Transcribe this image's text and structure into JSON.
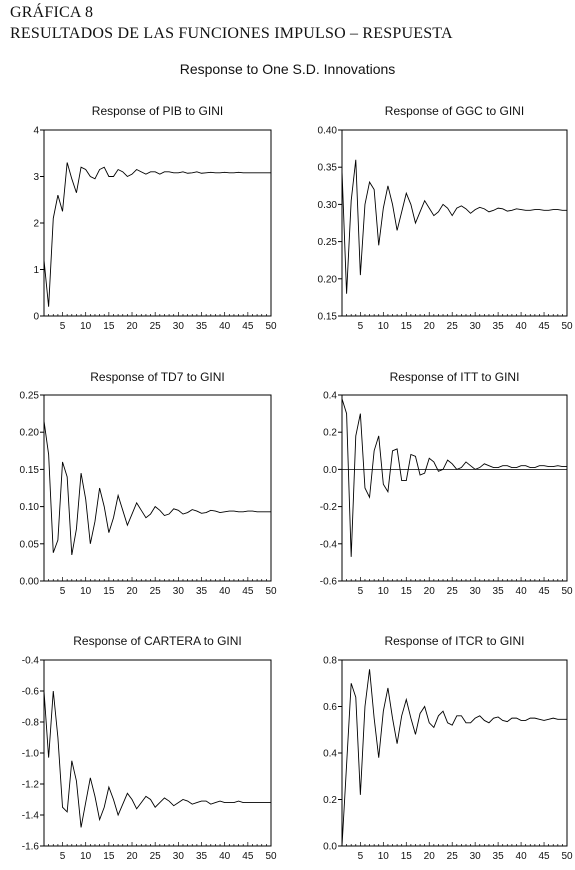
{
  "header": {
    "line1": "GRÁFICA 8",
    "line2": "RESULTADOS DE LAS FUNCIONES IMPULSO – RESPUESTA",
    "subtitle": "Response to One S.D. Innovations"
  },
  "chart_data": [
    {
      "type": "line",
      "title": "Response of PIB to GINI",
      "xlim": [
        1,
        50
      ],
      "ylim": [
        0,
        4
      ],
      "xticks": [
        5,
        10,
        15,
        20,
        25,
        30,
        35,
        40,
        45,
        50
      ],
      "yticks": [
        0,
        1,
        2,
        3,
        4
      ],
      "ytick_labels": [
        "0",
        "1",
        "2",
        "3",
        "4"
      ],
      "zero_line": false,
      "series": [
        {
          "values": [
            1.2,
            0.2,
            2.1,
            2.6,
            2.25,
            3.3,
            2.95,
            2.65,
            3.2,
            3.15,
            3.0,
            2.95,
            3.15,
            3.2,
            3.0,
            3.0,
            3.15,
            3.1,
            3.0,
            3.05,
            3.15,
            3.1,
            3.05,
            3.1,
            3.1,
            3.05,
            3.1,
            3.1,
            3.08,
            3.08,
            3.1,
            3.07,
            3.08,
            3.1,
            3.07,
            3.08,
            3.09,
            3.08,
            3.08,
            3.09,
            3.08,
            3.08,
            3.09,
            3.08,
            3.08,
            3.08,
            3.08,
            3.08,
            3.08,
            3.08
          ]
        }
      ]
    },
    {
      "type": "line",
      "title": "Response of GGC to GINI",
      "xlim": [
        1,
        50
      ],
      "ylim": [
        0.15,
        0.4
      ],
      "xticks": [
        5,
        10,
        15,
        20,
        25,
        30,
        35,
        40,
        45,
        50
      ],
      "yticks": [
        0.15,
        0.2,
        0.25,
        0.3,
        0.35,
        0.4
      ],
      "ytick_labels": [
        "0.15",
        "0.20",
        "0.25",
        "0.30",
        "0.35",
        "0.40"
      ],
      "zero_line": false,
      "series": [
        {
          "values": [
            0.345,
            0.18,
            0.305,
            0.36,
            0.205,
            0.3,
            0.33,
            0.32,
            0.245,
            0.295,
            0.325,
            0.3,
            0.265,
            0.29,
            0.315,
            0.3,
            0.275,
            0.29,
            0.305,
            0.295,
            0.285,
            0.29,
            0.3,
            0.295,
            0.285,
            0.295,
            0.298,
            0.294,
            0.288,
            0.293,
            0.296,
            0.294,
            0.29,
            0.292,
            0.295,
            0.294,
            0.291,
            0.292,
            0.294,
            0.293,
            0.292,
            0.292,
            0.293,
            0.293,
            0.292,
            0.292,
            0.293,
            0.293,
            0.292,
            0.292
          ]
        }
      ]
    },
    {
      "type": "line",
      "title": "Response of TD7 to GINI",
      "xlim": [
        1,
        50
      ],
      "ylim": [
        0,
        0.25
      ],
      "xticks": [
        5,
        10,
        15,
        20,
        25,
        30,
        35,
        40,
        45,
        50
      ],
      "yticks": [
        0,
        0.05,
        0.1,
        0.15,
        0.2,
        0.25
      ],
      "ytick_labels": [
        "0.00",
        "0.05",
        "0.10",
        "0.15",
        "0.20",
        "0.25"
      ],
      "zero_line": false,
      "series": [
        {
          "values": [
            0.215,
            0.17,
            0.038,
            0.055,
            0.16,
            0.14,
            0.035,
            0.07,
            0.145,
            0.11,
            0.05,
            0.08,
            0.125,
            0.1,
            0.065,
            0.085,
            0.115,
            0.095,
            0.075,
            0.09,
            0.105,
            0.095,
            0.085,
            0.09,
            0.1,
            0.095,
            0.088,
            0.09,
            0.097,
            0.095,
            0.09,
            0.092,
            0.096,
            0.094,
            0.091,
            0.092,
            0.095,
            0.094,
            0.092,
            0.093,
            0.094,
            0.094,
            0.093,
            0.093,
            0.094,
            0.094,
            0.093,
            0.093,
            0.093,
            0.093
          ]
        }
      ]
    },
    {
      "type": "line",
      "title": "Response of ITT to GINI",
      "xlim": [
        1,
        50
      ],
      "ylim": [
        -0.6,
        0.4
      ],
      "xticks": [
        5,
        10,
        15,
        20,
        25,
        30,
        35,
        40,
        45,
        50
      ],
      "yticks": [
        -0.6,
        -0.4,
        -0.2,
        0.0,
        0.2,
        0.4
      ],
      "ytick_labels": [
        "-0.6",
        "-0.4",
        "-0.2",
        "0.0",
        "0.2",
        "0.4"
      ],
      "zero_line": true,
      "series": [
        {
          "values": [
            0.38,
            0.3,
            -0.47,
            0.18,
            0.3,
            -0.1,
            -0.15,
            0.1,
            0.18,
            -0.08,
            -0.12,
            0.1,
            0.11,
            -0.06,
            -0.06,
            0.08,
            0.07,
            -0.03,
            -0.02,
            0.06,
            0.04,
            -0.01,
            0.0,
            0.05,
            0.03,
            0.0,
            0.01,
            0.04,
            0.02,
            0.0,
            0.01,
            0.03,
            0.02,
            0.01,
            0.01,
            0.02,
            0.02,
            0.01,
            0.01,
            0.02,
            0.02,
            0.01,
            0.01,
            0.02,
            0.02,
            0.015,
            0.015,
            0.02,
            0.015,
            0.015
          ]
        }
      ]
    },
    {
      "type": "line",
      "title": "Response of CARTERA to GINI",
      "xlim": [
        1,
        50
      ],
      "ylim": [
        -1.6,
        -0.4
      ],
      "xticks": [
        5,
        10,
        15,
        20,
        25,
        30,
        35,
        40,
        45,
        50
      ],
      "yticks": [
        -1.6,
        -1.4,
        -1.2,
        -1.0,
        -0.8,
        -0.6,
        -0.4
      ],
      "ytick_labels": [
        "-1.6",
        "-1.4",
        "-1.2",
        "-1.0",
        "-0.8",
        "-0.6",
        "-0.4"
      ],
      "zero_line": false,
      "series": [
        {
          "values": [
            -0.6,
            -1.03,
            -0.6,
            -0.9,
            -1.35,
            -1.38,
            -1.05,
            -1.18,
            -1.48,
            -1.32,
            -1.16,
            -1.28,
            -1.43,
            -1.35,
            -1.22,
            -1.3,
            -1.4,
            -1.33,
            -1.26,
            -1.3,
            -1.36,
            -1.32,
            -1.28,
            -1.3,
            -1.35,
            -1.32,
            -1.29,
            -1.31,
            -1.34,
            -1.32,
            -1.3,
            -1.31,
            -1.33,
            -1.32,
            -1.31,
            -1.31,
            -1.33,
            -1.32,
            -1.31,
            -1.32,
            -1.32,
            -1.32,
            -1.31,
            -1.32,
            -1.32,
            -1.32,
            -1.32,
            -1.32,
            -1.32,
            -1.32
          ]
        }
      ]
    },
    {
      "type": "line",
      "title": "Response of ITCR to GINI",
      "xlim": [
        1,
        50
      ],
      "ylim": [
        0,
        0.8
      ],
      "xticks": [
        5,
        10,
        15,
        20,
        25,
        30,
        35,
        40,
        45,
        50
      ],
      "yticks": [
        0,
        0.2,
        0.4,
        0.6,
        0.8
      ],
      "ytick_labels": [
        "0.0",
        "0.2",
        "0.4",
        "0.6",
        "0.8"
      ],
      "zero_line": false,
      "series": [
        {
          "values": [
            0.0,
            0.35,
            0.7,
            0.64,
            0.22,
            0.6,
            0.76,
            0.55,
            0.38,
            0.58,
            0.68,
            0.55,
            0.44,
            0.56,
            0.63,
            0.55,
            0.48,
            0.57,
            0.6,
            0.53,
            0.51,
            0.56,
            0.58,
            0.53,
            0.52,
            0.56,
            0.56,
            0.53,
            0.53,
            0.55,
            0.56,
            0.54,
            0.53,
            0.55,
            0.555,
            0.54,
            0.535,
            0.55,
            0.55,
            0.54,
            0.54,
            0.55,
            0.55,
            0.545,
            0.54,
            0.545,
            0.55,
            0.545,
            0.545,
            0.545
          ]
        }
      ]
    }
  ]
}
